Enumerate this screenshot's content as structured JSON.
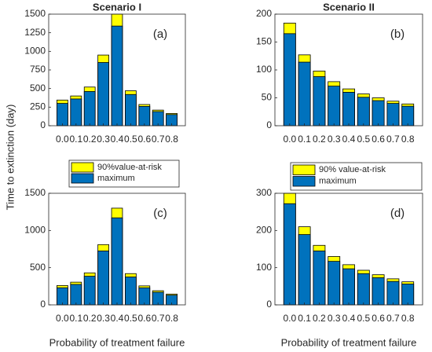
{
  "figure": {
    "ylabel": "Time to extinction (day)"
  },
  "chart_data": [
    {
      "type": "bar",
      "title": "Scenario I",
      "annotation": "(a)",
      "categories": [
        "0.0",
        "0.1",
        "0.2",
        "0.3",
        "0.4",
        "0.5",
        "0.6",
        "0.7",
        "0.8"
      ],
      "series": [
        {
          "name": "90%value-at-risk",
          "color": "#ffff00",
          "values": [
            345,
            400,
            520,
            950,
            1500,
            470,
            285,
            210,
            165
          ]
        },
        {
          "name": "maximum",
          "color": "#0072bd",
          "values": [
            300,
            360,
            460,
            850,
            1340,
            420,
            260,
            190,
            150
          ]
        }
      ],
      "ylim": [
        0,
        1500
      ],
      "yticks": [
        0,
        250,
        500,
        750,
        1000,
        1250,
        1500
      ]
    },
    {
      "type": "bar",
      "title": "Scenario II",
      "annotation": "(b)",
      "categories": [
        "0.0",
        "0.1",
        "0.2",
        "0.3",
        "0.4",
        "0.5",
        "0.6",
        "0.7",
        "0.8"
      ],
      "series": [
        {
          "name": "90% value-at-risk",
          "color": "#ffff00",
          "values": [
            184,
            127,
            98,
            79,
            66,
            57,
            50,
            44,
            39
          ]
        },
        {
          "name": "maximum",
          "color": "#0072bd",
          "values": [
            165,
            114,
            88,
            71,
            60,
            51,
            45,
            40,
            35
          ]
        }
      ],
      "ylim": [
        0,
        200
      ],
      "yticks": [
        0,
        50,
        100,
        150,
        200
      ]
    },
    {
      "type": "bar",
      "annotation": "(c)",
      "xlabel": "Probability of treatment failure",
      "categories": [
        "0.0",
        "0.1",
        "0.2",
        "0.3",
        "0.4",
        "0.5",
        "0.6",
        "0.7",
        "0.8"
      ],
      "series": [
        {
          "color": "#ffff00",
          "values": [
            260,
            305,
            430,
            810,
            1300,
            420,
            255,
            190,
            145
          ]
        },
        {
          "color": "#0072bd",
          "values": [
            230,
            275,
            385,
            725,
            1170,
            375,
            230,
            170,
            130
          ]
        }
      ],
      "ylim": [
        0,
        1500
      ],
      "yticks": [
        0,
        500,
        1000,
        1500
      ]
    },
    {
      "type": "bar",
      "annotation": "(d)",
      "xlabel": "Probability of treatment failure",
      "categories": [
        "0.0",
        "0.1",
        "0.2",
        "0.3",
        "0.4",
        "0.5",
        "0.6",
        "0.7",
        "0.8"
      ],
      "series": [
        {
          "color": "#ffff00",
          "values": [
            300,
            210,
            160,
            130,
            108,
            93,
            81,
            70,
            62
          ]
        },
        {
          "color": "#0072bd",
          "values": [
            272,
            189,
            145,
            117,
            97,
            84,
            73,
            63,
            56
          ]
        }
      ],
      "ylim": [
        0,
        300
      ],
      "yticks": [
        0,
        100,
        200,
        300
      ]
    }
  ]
}
